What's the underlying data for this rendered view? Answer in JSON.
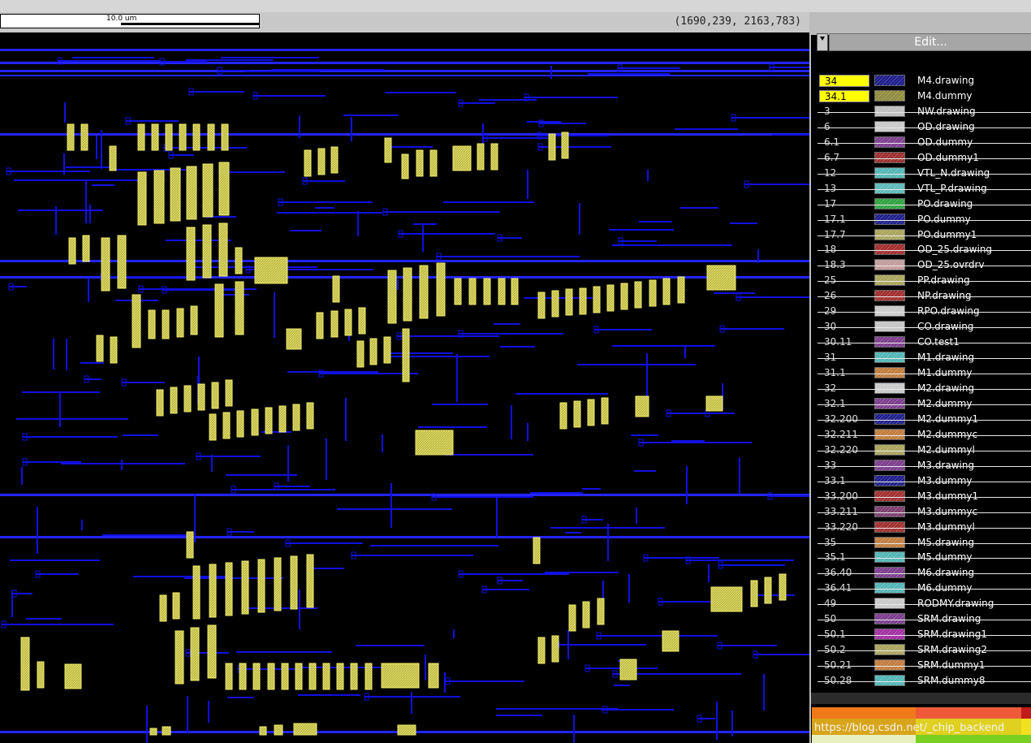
{
  "ruler": {
    "scale_label": "10.0 um",
    "coordinates": "(1690,239, 2163,783)"
  },
  "panel": {
    "edit_label": "Edit...",
    "watermark": "https://blog.csdn.net/_chip_backend",
    "layers": [
      {
        "num": "34",
        "name": "M4.drawing",
        "color": "#1a1a8a",
        "highlight": true
      },
      {
        "num": "34.1",
        "name": "M4.dummy",
        "color": "#8e8a3a",
        "highlight": true
      },
      {
        "num": "3",
        "name": "NW.drawing",
        "color": "#bdbdbd",
        "highlight": false
      },
      {
        "num": "6",
        "name": "OD.drawing",
        "color": "#c8c8c8",
        "highlight": false
      },
      {
        "num": "6.1",
        "name": "OD.dummy",
        "color": "#7a3a8c",
        "highlight": false
      },
      {
        "num": "6.7",
        "name": "OD.dummy1",
        "color": "#9a2a2a",
        "highlight": false
      },
      {
        "num": "12",
        "name": "VTL_N.drawing",
        "color": "#4fb4b4",
        "highlight": false
      },
      {
        "num": "13",
        "name": "VTL_P.drawing",
        "color": "#5ab8b8",
        "highlight": false
      },
      {
        "num": "17",
        "name": "PO.drawing",
        "color": "#2aa03a",
        "highlight": false
      },
      {
        "num": "17.1",
        "name": "PO.dummy",
        "color": "#1a1a8a",
        "highlight": false
      },
      {
        "num": "17.7",
        "name": "PO.dummy1",
        "color": "#a8a35a",
        "highlight": false
      },
      {
        "num": "18",
        "name": "OD_25.drawing",
        "color": "#a02a2a",
        "highlight": false
      },
      {
        "num": "18.3",
        "name": "OD_25.ovrdrv",
        "color": "#c09a9a",
        "highlight": false
      },
      {
        "num": "25",
        "name": "PP.drawing",
        "color": "#a8a35a",
        "highlight": false
      },
      {
        "num": "26",
        "name": "NP.drawing",
        "color": "#a02a2a",
        "highlight": false
      },
      {
        "num": "29",
        "name": "RPO.drawing",
        "color": "#c8c8c8",
        "highlight": false
      },
      {
        "num": "30",
        "name": "CO.drawing",
        "color": "#c4c4c4",
        "highlight": false
      },
      {
        "num": "30.11",
        "name": "CO.test1",
        "color": "#7a3a8c",
        "highlight": false
      },
      {
        "num": "31",
        "name": "M1.drawing",
        "color": "#4fb4b4",
        "highlight": false
      },
      {
        "num": "31.1",
        "name": "M1.dummy",
        "color": "#c07a3a",
        "highlight": false
      },
      {
        "num": "32",
        "name": "M2.drawing",
        "color": "#c8c8c8",
        "highlight": false
      },
      {
        "num": "32.1",
        "name": "M2.dummy",
        "color": "#7a3a8c",
        "highlight": false
      },
      {
        "num": "32.200",
        "name": "M2.dummy1",
        "color": "#1a1a8a",
        "highlight": false
      },
      {
        "num": "32.211",
        "name": "M2.dummyc",
        "color": "#c07a3a",
        "highlight": false
      },
      {
        "num": "32.220",
        "name": "M2.dummyl",
        "color": "#a8a35a",
        "highlight": false
      },
      {
        "num": "33",
        "name": "M3.drawing",
        "color": "#7a3a8c",
        "highlight": false
      },
      {
        "num": "33.1",
        "name": "M3.dummy",
        "color": "#1a1a8a",
        "highlight": false
      },
      {
        "num": "33.200",
        "name": "M3.dummy1",
        "color": "#a02a2a",
        "highlight": false
      },
      {
        "num": "33.211",
        "name": "M3.dummyc",
        "color": "#7a3a6c",
        "highlight": false
      },
      {
        "num": "33.220",
        "name": "M3.dummyl",
        "color": "#a02a2a",
        "highlight": false
      },
      {
        "num": "35",
        "name": "M5.drawing",
        "color": "#c07a3a",
        "highlight": false
      },
      {
        "num": "35.1",
        "name": "M5.dummy",
        "color": "#4fb4b4",
        "highlight": false
      },
      {
        "num": "36.40",
        "name": "M6.drawing",
        "color": "#7a3a8c",
        "highlight": false
      },
      {
        "num": "36.41",
        "name": "M6.dummy",
        "color": "#4fb4b4",
        "highlight": false
      },
      {
        "num": "49",
        "name": "RODMY.drawing",
        "color": "#c8c8c8",
        "highlight": false
      },
      {
        "num": "50",
        "name": "SRM.drawing",
        "color": "#7a3a8c",
        "highlight": false
      },
      {
        "num": "50.1",
        "name": "SRM.drawing1",
        "color": "#a02aa0",
        "highlight": false
      },
      {
        "num": "50.2",
        "name": "SRM.drawing2",
        "color": "#a8a35a",
        "highlight": false
      },
      {
        "num": "50.21",
        "name": "SRM.dummy1",
        "color": "#c07a3a",
        "highlight": false
      },
      {
        "num": "50.28",
        "name": "SRM.dummy8",
        "color": "#4fb4b4",
        "highlight": false
      }
    ]
  },
  "colors": {
    "canvas_bg": "#000000",
    "wire": "#1010e0",
    "wire_bright": "#2424ff",
    "cell_fill": "#c8c44a",
    "cell_stroke": "#f0ec6a"
  }
}
